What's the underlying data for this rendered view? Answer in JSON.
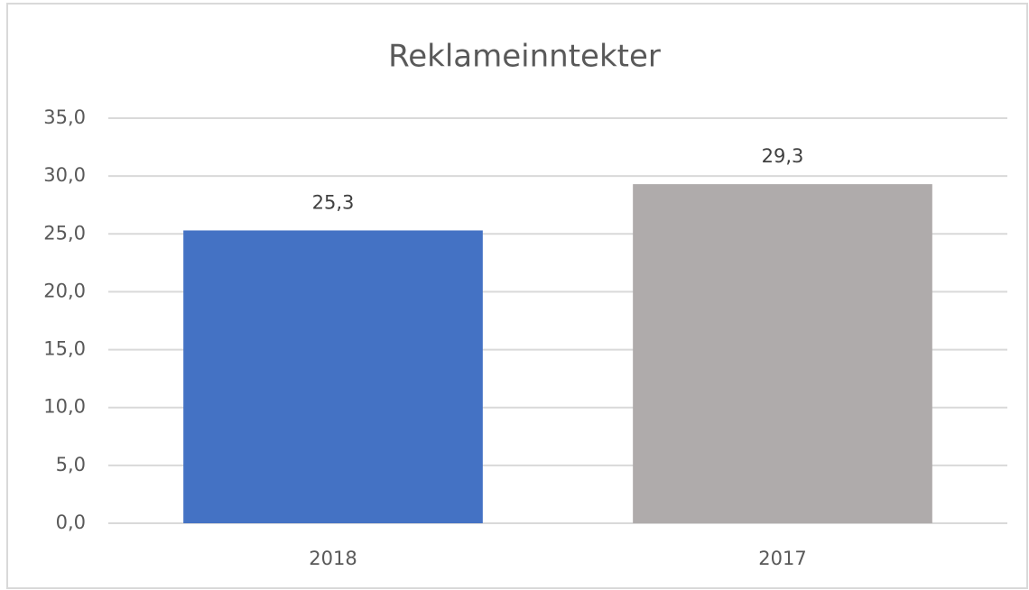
{
  "chart_data": {
    "type": "bar",
    "title": "Reklameinntekter",
    "categories": [
      "2018",
      "2017"
    ],
    "values": [
      25.3,
      29.3
    ],
    "value_labels": [
      "25,3",
      "29,3"
    ],
    "colors": [
      "#4472c4",
      "#afabab"
    ],
    "ylim": [
      0,
      35
    ],
    "yticks": [
      {
        "value": 0,
        "label": "0,0"
      },
      {
        "value": 5,
        "label": "5,0"
      },
      {
        "value": 10,
        "label": "10,0"
      },
      {
        "value": 15,
        "label": "15,0"
      },
      {
        "value": 20,
        "label": "20,0"
      },
      {
        "value": 25,
        "label": "25,0"
      },
      {
        "value": 30,
        "label": "30,0"
      },
      {
        "value": 35,
        "label": "35,0"
      }
    ],
    "grid": true
  }
}
